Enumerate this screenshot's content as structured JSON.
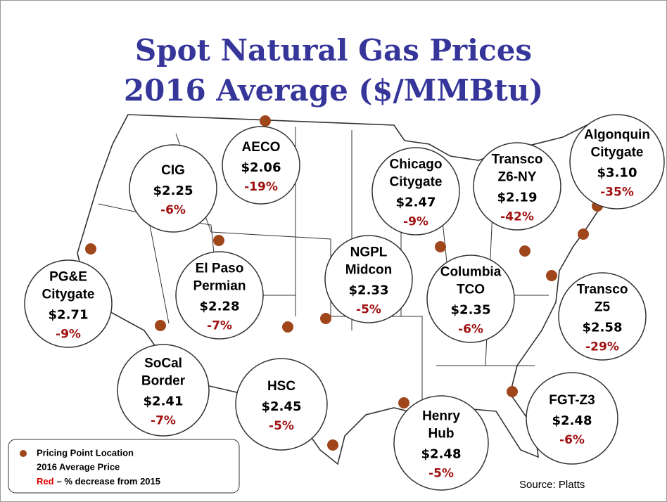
{
  "title": [
    "Spot Natural Gas Prices",
    "2016 Average ($/MMBtu)"
  ],
  "hubs": [
    {
      "name": [
        "AECO"
      ],
      "price": "$2.06",
      "change": "-19%"
    },
    {
      "name": [
        "CIG"
      ],
      "price": "$2.25",
      "change": "-6%"
    },
    {
      "name": [
        "PG&E",
        "Citygate"
      ],
      "price": "$2.71",
      "change": "-9%"
    },
    {
      "name": [
        "El Paso",
        "Permian"
      ],
      "price": "$2.28",
      "change": "-7%"
    },
    {
      "name": [
        "SoCal",
        "Border"
      ],
      "price": "$2.41",
      "change": "-7%"
    },
    {
      "name": [
        "HSC"
      ],
      "price": "$2.45",
      "change": "-5%"
    },
    {
      "name": [
        "NGPL",
        "Midcon"
      ],
      "price": "$2.33",
      "change": "-5%"
    },
    {
      "name": [
        "Chicago",
        "Citygate"
      ],
      "price": "$2.47",
      "change": "-9%"
    },
    {
      "name": [
        "Transco",
        "Z6-NY"
      ],
      "price": "$2.19",
      "change": "-42%"
    },
    {
      "name": [
        "Algonquin",
        "Citygate"
      ],
      "price": "$3.10",
      "change": "-35%"
    },
    {
      "name": [
        "Columbia",
        "TCO"
      ],
      "price": "$2.35",
      "change": "-6%"
    },
    {
      "name": [
        "Transco",
        "Z5"
      ],
      "price": "$2.58",
      "change": "-29%"
    },
    {
      "name": [
        "Henry",
        "Hub"
      ],
      "price": "$2.48",
      "change": "-5%"
    },
    {
      "name": [
        "FGT-Z3"
      ],
      "price": "$2.48",
      "change": "-6%"
    }
  ],
  "legend": {
    "marker": "Pricing Point Location",
    "price": "2016 Average Price",
    "highlight": "Red",
    "change": "– % decrease from 2015"
  },
  "source": "Source: Platts"
}
